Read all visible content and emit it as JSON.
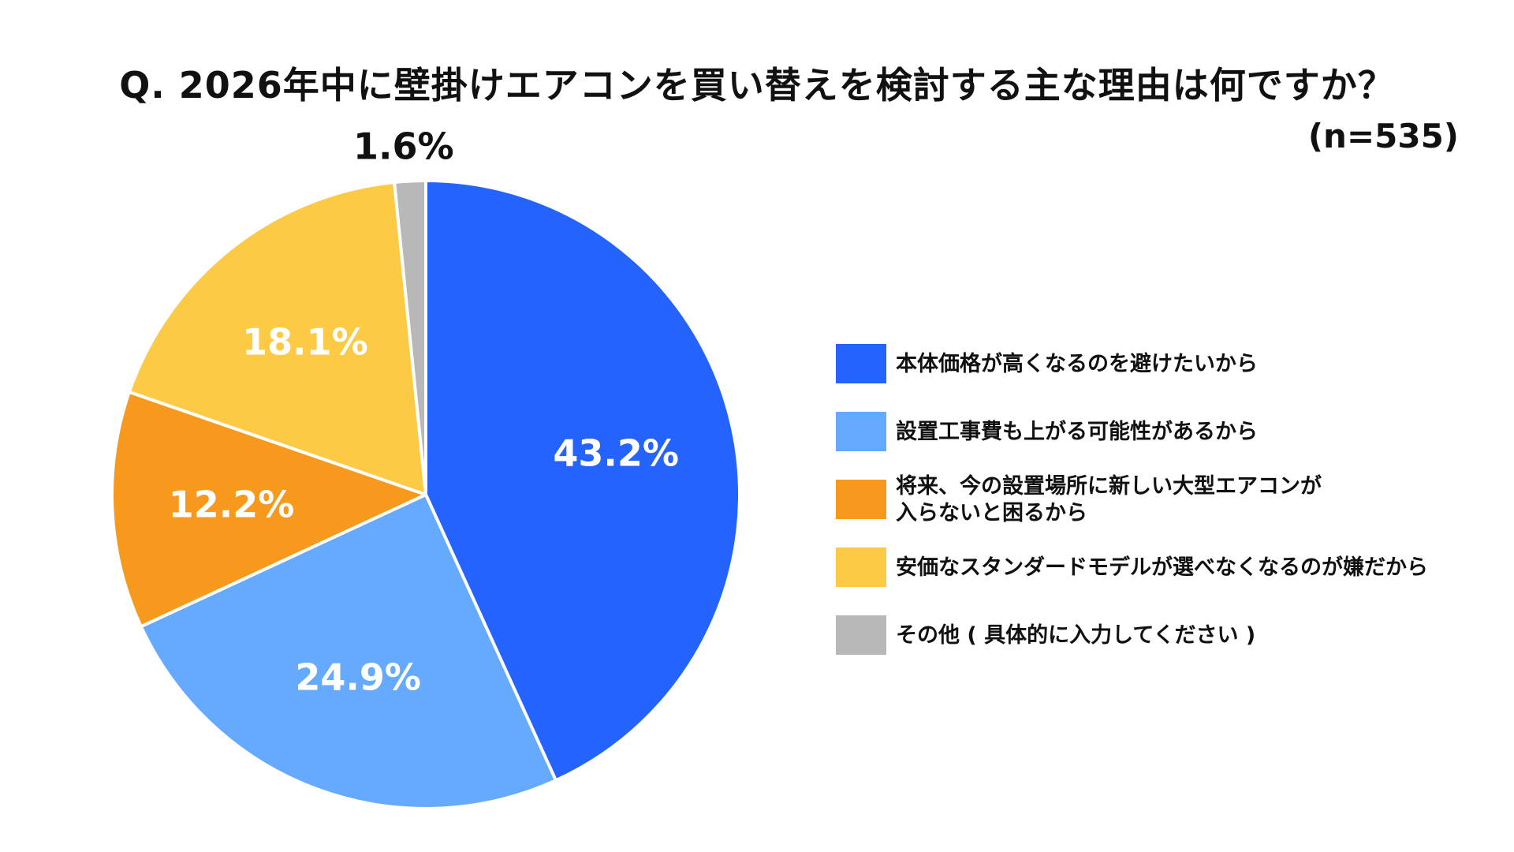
{
  "chart_data": {
    "type": "pie",
    "title": "Q. 2026年中に壁掛けエアコンを買い替えを検討する主な理由は何ですか？",
    "sample_size": "(n=535)",
    "legend_position": "right",
    "slices": [
      {
        "label": "本体価格が高くなるのを避けたいから",
        "value": 43.2,
        "value_label": "43.2%",
        "color": "#2563FF",
        "label_color": "#ffffff"
      },
      {
        "label": "設置工事費も上がる可能性があるから",
        "value": 24.9,
        "value_label": "24.9%",
        "color": "#65AAFF",
        "label_color": "#ffffff"
      },
      {
        "label": "将来、今の設置場所に新しい大型エアコンが\n入らないと困るから",
        "value": 12.2,
        "value_label": "12.2%",
        "color": "#F7991C",
        "label_color": "#ffffff"
      },
      {
        "label": "安価なスタンダードモデルが選べなくなるのが嫌だから",
        "value": 18.1,
        "value_label": "18.1%",
        "color": "#FDCA46",
        "label_color": "#ffffff"
      },
      {
        "label": "その他 ( 具体的に入力してください )",
        "value": 1.6,
        "value_label": "1.6%",
        "color": "#B8B8B8",
        "label_color": "#111111"
      }
    ]
  }
}
